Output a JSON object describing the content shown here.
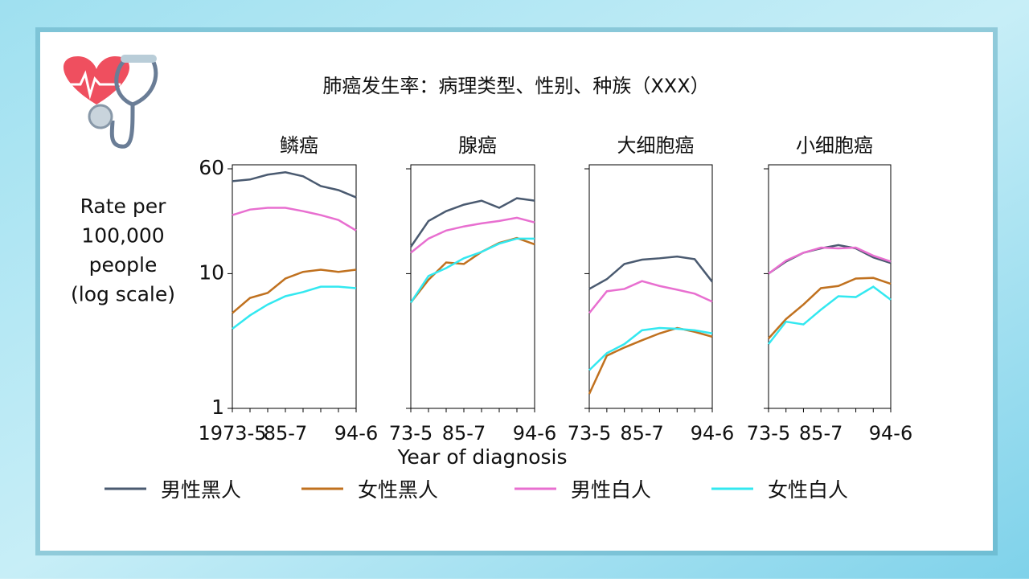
{
  "title": "肺癌发生率：病理类型、性别、种族（XXX）",
  "y_label": [
    "Rate per",
    "100,000",
    "people",
    "(log scale)"
  ],
  "x_label": "Year of diagnosis",
  "chart_data": [
    {
      "type": "line",
      "title": "鳞癌",
      "log_scale": true,
      "ylim": [
        1,
        60
      ],
      "yticks": [
        1,
        10,
        60
      ],
      "categories": [
        "1973-5",
        null,
        null,
        "85-7",
        null,
        null,
        null,
        "94-6"
      ],
      "series": [
        {
          "name": "男性黑人",
          "color": "#4a5a70",
          "values": [
            48.6,
            50,
            54.3,
            56.6,
            52.8,
            44.7,
            41.7,
            36.8
          ]
        },
        {
          "name": "女性黑人",
          "color": "#c0711f",
          "values": [
            5.1,
            6.6,
            7.2,
            9.2,
            10.3,
            10.7,
            10.3,
            10.7
          ]
        },
        {
          "name": "男性白人",
          "color": "#e86fd0",
          "values": [
            27.2,
            29.9,
            30.8,
            30.8,
            29.1,
            27.2,
            25.0,
            20.9
          ]
        },
        {
          "name": "女性白人",
          "color": "#33e8f0",
          "values": [
            3.9,
            4.9,
            5.9,
            6.8,
            7.3,
            8.0,
            8.0,
            7.8
          ]
        }
      ]
    },
    {
      "type": "line",
      "title": "腺癌",
      "log_scale": true,
      "ylim": [
        1,
        60
      ],
      "yticks": [
        1,
        10,
        60
      ],
      "categories": [
        "73-5",
        null,
        null,
        "85-7",
        null,
        null,
        null,
        "94-6"
      ],
      "series": [
        {
          "name": "男性黑人",
          "color": "#4a5a70",
          "values": [
            15.8,
            24.6,
            29.1,
            32.5,
            34.8,
            30.8,
            36.3,
            34.8
          ]
        },
        {
          "name": "女性黑人",
          "color": "#c0711f",
          "values": [
            6.1,
            9.0,
            12.1,
            11.8,
            14.5,
            16.9,
            18.4,
            16.5
          ]
        },
        {
          "name": "男性白人",
          "color": "#e86fd0",
          "values": [
            14.3,
            18.2,
            20.9,
            22.4,
            23.6,
            24.6,
            26.0,
            24.0
          ]
        },
        {
          "name": "女性白人",
          "color": "#33e8f0",
          "values": [
            6.1,
            9.6,
            11.0,
            13.0,
            14.5,
            16.7,
            18.2,
            18.2
          ]
        }
      ]
    },
    {
      "type": "line",
      "title": "大细胞癌",
      "log_scale": true,
      "ylim": [
        1,
        60
      ],
      "yticks": [
        1,
        10,
        60
      ],
      "categories": [
        "73-5",
        null,
        null,
        "85-7",
        null,
        null,
        null,
        "94-6"
      ],
      "series": [
        {
          "name": "男性黑人",
          "color": "#4a5a70",
          "values": [
            7.7,
            9.1,
            11.8,
            12.7,
            13.0,
            13.4,
            12.8,
            8.7
          ]
        },
        {
          "name": "女性黑人",
          "color": "#c0711f",
          "values": [
            1.28,
            2.46,
            2.83,
            3.2,
            3.6,
            3.95,
            3.7,
            3.4
          ]
        },
        {
          "name": "男性白人",
          "color": "#e86fd0",
          "values": [
            5.1,
            7.4,
            7.7,
            8.8,
            8.1,
            7.6,
            7.1,
            6.2
          ]
        },
        {
          "name": "女性白人",
          "color": "#33e8f0",
          "values": [
            1.92,
            2.57,
            3.0,
            3.8,
            3.95,
            3.9,
            3.8,
            3.6
          ]
        }
      ]
    },
    {
      "type": "line",
      "title": "小细胞癌",
      "log_scale": true,
      "ylim": [
        1,
        60
      ],
      "yticks": [
        1,
        10,
        60
      ],
      "categories": [
        "73-5",
        null,
        null,
        "85-7",
        null,
        null,
        null,
        "94-6"
      ],
      "series": [
        {
          "name": "男性黑人",
          "color": "#4a5a70",
          "values": [
            10.0,
            12.3,
            14.3,
            15.4,
            16.3,
            15.4,
            13.2,
            12.0
          ]
        },
        {
          "name": "女性黑人",
          "color": "#c0711f",
          "values": [
            3.3,
            4.6,
            5.9,
            7.8,
            8.1,
            9.2,
            9.3,
            8.4
          ]
        },
        {
          "name": "男性白人",
          "color": "#e86fd0",
          "values": [
            10.0,
            12.5,
            14.3,
            15.6,
            15.4,
            15.6,
            13.6,
            12.3
          ]
        },
        {
          "name": "女性白人",
          "color": "#33e8f0",
          "values": [
            3.0,
            4.4,
            4.2,
            5.4,
            6.8,
            6.7,
            8.0,
            6.4
          ]
        }
      ]
    }
  ]
}
